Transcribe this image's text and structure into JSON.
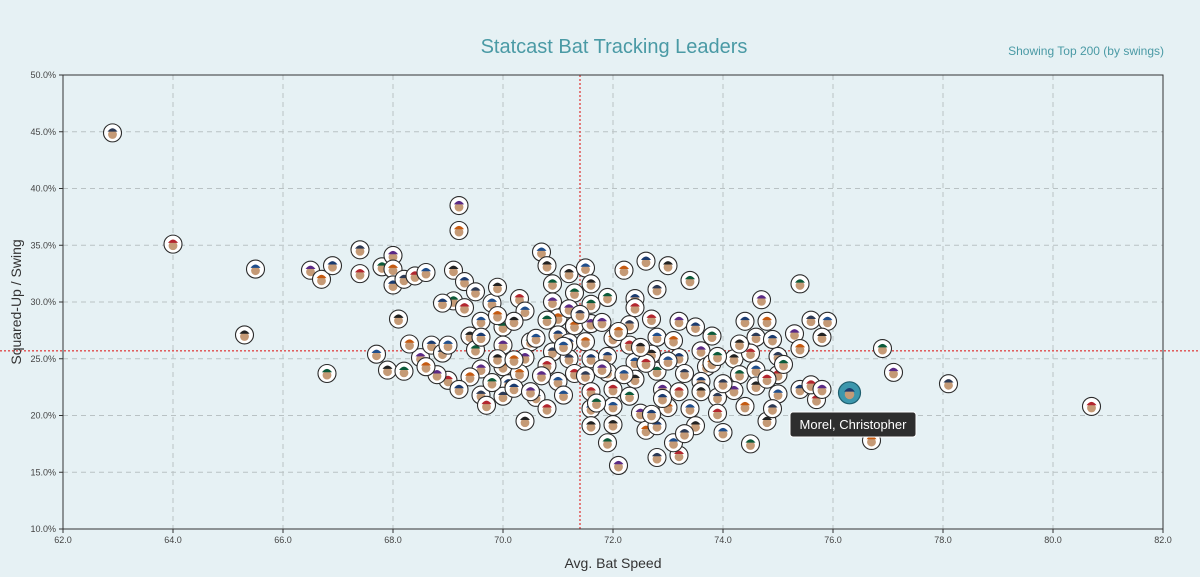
{
  "header": {
    "title": "Statcast Bat Tracking Leaders",
    "subtitle": "Showing Top 200 (by swings)"
  },
  "tooltip": {
    "text": "Morel, Christopher"
  },
  "colors": {
    "title": "#4a9aa5",
    "average_line": "#e04a4a",
    "highlight": "#3c97ad",
    "background": "#e6f1f4"
  },
  "chart_data": {
    "type": "scatter",
    "xlabel": "Avg. Bat Speed",
    "ylabel": "Squared-Up / Swing",
    "xlim": [
      62,
      82
    ],
    "ylim": [
      10,
      50
    ],
    "xticks": [
      "62.0",
      "64.0",
      "66.0",
      "68.0",
      "70.0",
      "72.0",
      "74.0",
      "76.0",
      "78.0",
      "80.0",
      "82.0"
    ],
    "yticks": [
      "10.0%",
      "15.0%",
      "20.0%",
      "25.0%",
      "30.0%",
      "35.0%",
      "40.0%",
      "45.0%",
      "50.0%"
    ],
    "grid": true,
    "reference_lines": {
      "x": 71.4,
      "y": 25.7
    },
    "highlighted_point": {
      "name": "Morel, Christopher",
      "x": 76.3,
      "y": 22.0
    },
    "points": [
      [
        62.9,
        44.9
      ],
      [
        64.0,
        35.1
      ],
      [
        65.5,
        32.9
      ],
      [
        65.3,
        27.1
      ],
      [
        66.8,
        23.7
      ],
      [
        66.5,
        32.8
      ],
      [
        66.7,
        32.0
      ],
      [
        66.9,
        33.2
      ],
      [
        67.4,
        34.6
      ],
      [
        67.4,
        32.5
      ],
      [
        67.7,
        25.4
      ],
      [
        67.9,
        24.0
      ],
      [
        67.8,
        33.1
      ],
      [
        68.0,
        34.1
      ],
      [
        68.0,
        32.9
      ],
      [
        68.0,
        31.5
      ],
      [
        68.2,
        32.0
      ],
      [
        68.4,
        32.3
      ],
      [
        68.6,
        32.6
      ],
      [
        68.1,
        28.5
      ],
      [
        68.2,
        23.9
      ],
      [
        68.5,
        25.1
      ],
      [
        68.3,
        26.3
      ],
      [
        68.7,
        26.2
      ],
      [
        68.9,
        25.5
      ],
      [
        69.0,
        23.1
      ],
      [
        69.0,
        26.2
      ],
      [
        69.1,
        32.8
      ],
      [
        69.1,
        30.1
      ],
      [
        69.2,
        38.5
      ],
      [
        69.2,
        36.3
      ],
      [
        69.3,
        31.8
      ],
      [
        69.5,
        30.9
      ],
      [
        69.3,
        29.5
      ],
      [
        69.6,
        28.3
      ],
      [
        69.4,
        27.0
      ],
      [
        69.5,
        25.8
      ],
      [
        69.6,
        24.1
      ],
      [
        69.4,
        23.4
      ],
      [
        69.2,
        22.3
      ],
      [
        69.6,
        21.8
      ],
      [
        69.7,
        20.9
      ],
      [
        69.8,
        29.9
      ],
      [
        69.9,
        31.3
      ],
      [
        70.0,
        27.8
      ],
      [
        70.0,
        26.2
      ],
      [
        70.0,
        24.3
      ],
      [
        70.1,
        22.8
      ],
      [
        70.0,
        21.7
      ],
      [
        70.3,
        30.3
      ],
      [
        70.4,
        29.2
      ],
      [
        70.2,
        28.3
      ],
      [
        70.5,
        26.5
      ],
      [
        70.4,
        25.1
      ],
      [
        70.3,
        23.7
      ],
      [
        70.2,
        22.4
      ],
      [
        70.6,
        21.6
      ],
      [
        70.8,
        20.6
      ],
      [
        70.7,
        34.4
      ],
      [
        70.8,
        33.2
      ],
      [
        70.9,
        31.6
      ],
      [
        70.9,
        30.0
      ],
      [
        71.0,
        28.6
      ],
      [
        71.0,
        27.1
      ],
      [
        70.9,
        25.6
      ],
      [
        70.8,
        24.4
      ],
      [
        71.0,
        23.0
      ],
      [
        71.2,
        32.5
      ],
      [
        71.3,
        30.8
      ],
      [
        71.2,
        29.4
      ],
      [
        71.3,
        27.9
      ],
      [
        71.2,
        26.4
      ],
      [
        71.2,
        25.0
      ],
      [
        71.3,
        23.7
      ],
      [
        71.5,
        33.0
      ],
      [
        71.6,
        31.6
      ],
      [
        71.6,
        29.8
      ],
      [
        71.6,
        28.1
      ],
      [
        71.5,
        26.5
      ],
      [
        71.6,
        25.0
      ],
      [
        71.5,
        23.5
      ],
      [
        71.6,
        22.1
      ],
      [
        71.6,
        20.6
      ],
      [
        71.6,
        19.1
      ],
      [
        71.9,
        30.4
      ],
      [
        71.8,
        28.2
      ],
      [
        72.0,
        26.8
      ],
      [
        71.9,
        25.2
      ],
      [
        71.9,
        23.8
      ],
      [
        72.0,
        22.3
      ],
      [
        72.0,
        20.8
      ],
      [
        72.0,
        19.2
      ],
      [
        71.9,
        17.6
      ],
      [
        72.1,
        15.6
      ],
      [
        72.2,
        32.8
      ],
      [
        72.4,
        30.3
      ],
      [
        72.3,
        28.0
      ],
      [
        72.3,
        26.2
      ],
      [
        72.4,
        24.7
      ],
      [
        72.4,
        23.2
      ],
      [
        72.3,
        21.7
      ],
      [
        72.5,
        20.2
      ],
      [
        72.6,
        18.7
      ],
      [
        72.6,
        33.6
      ],
      [
        72.8,
        31.1
      ],
      [
        72.7,
        28.5
      ],
      [
        72.8,
        26.9
      ],
      [
        72.7,
        25.4
      ],
      [
        72.8,
        23.9
      ],
      [
        72.9,
        22.3
      ],
      [
        73.0,
        20.7
      ],
      [
        72.8,
        19.1
      ],
      [
        72.8,
        16.3
      ],
      [
        73.2,
        16.5
      ],
      [
        73.1,
        17.6
      ],
      [
        73.0,
        33.2
      ],
      [
        73.4,
        31.9
      ],
      [
        73.2,
        28.3
      ],
      [
        73.1,
        26.6
      ],
      [
        73.2,
        25.1
      ],
      [
        73.3,
        23.7
      ],
      [
        73.2,
        22.1
      ],
      [
        73.4,
        20.6
      ],
      [
        73.5,
        19.1
      ],
      [
        73.8,
        27.0
      ],
      [
        73.6,
        25.7
      ],
      [
        73.7,
        24.3
      ],
      [
        73.6,
        23.0
      ],
      [
        73.9,
        21.6
      ],
      [
        73.9,
        20.2
      ],
      [
        74.0,
        18.5
      ],
      [
        74.2,
        25.0
      ],
      [
        74.3,
        23.6
      ],
      [
        74.2,
        22.2
      ],
      [
        74.4,
        20.8
      ],
      [
        74.4,
        28.3
      ],
      [
        74.6,
        26.9
      ],
      [
        74.5,
        25.5
      ],
      [
        74.6,
        24.0
      ],
      [
        74.6,
        22.6
      ],
      [
        74.5,
        17.5
      ],
      [
        74.7,
        30.2
      ],
      [
        74.8,
        28.3
      ],
      [
        74.9,
        26.7
      ],
      [
        75.0,
        25.2
      ],
      [
        75.0,
        23.6
      ],
      [
        75.0,
        21.9
      ],
      [
        74.8,
        19.5
      ],
      [
        75.4,
        31.6
      ],
      [
        75.3,
        27.2
      ],
      [
        75.4,
        25.9
      ],
      [
        75.4,
        22.3
      ],
      [
        75.6,
        28.4
      ],
      [
        75.7,
        21.4
      ],
      [
        75.9,
        28.3
      ],
      [
        75.8,
        26.9
      ],
      [
        76.9,
        25.9
      ],
      [
        77.1,
        23.8
      ],
      [
        76.7,
        17.8
      ],
      [
        76.7,
        19.4
      ],
      [
        78.1,
        22.8
      ],
      [
        80.7,
        20.8
      ],
      [
        70.6,
        26.8
      ],
      [
        69.9,
        25.0
      ],
      [
        70.8,
        28.4
      ],
      [
        71.8,
        24.1
      ],
      [
        72.1,
        27.4
      ],
      [
        73.5,
        27.8
      ],
      [
        74.0,
        22.8
      ],
      [
        72.6,
        24.6
      ],
      [
        71.1,
        21.8
      ],
      [
        70.4,
        19.5
      ],
      [
        69.8,
        22.9
      ],
      [
        68.8,
        23.6
      ],
      [
        73.8,
        24.6
      ],
      [
        72.9,
        21.5
      ],
      [
        74.9,
        20.6
      ],
      [
        75.6,
        22.7
      ],
      [
        72.2,
        23.6
      ],
      [
        73.6,
        22.1
      ],
      [
        71.7,
        21.1
      ],
      [
        70.7,
        23.5
      ],
      [
        69.9,
        28.8
      ],
      [
        68.9,
        29.9
      ],
      [
        71.4,
        28.9
      ],
      [
        72.4,
        29.5
      ],
      [
        73.0,
        24.8
      ],
      [
        74.3,
        26.3
      ],
      [
        75.1,
        24.5
      ],
      [
        75.8,
        22.3
      ],
      [
        70.2,
        24.9
      ],
      [
        72.7,
        20.1
      ],
      [
        73.3,
        18.4
      ],
      [
        74.8,
        23.2
      ],
      [
        71.1,
        26.1
      ],
      [
        72.5,
        26.0
      ],
      [
        73.9,
        25.2
      ],
      [
        70.5,
        22.1
      ],
      [
        68.6,
        24.3
      ],
      [
        69.6,
        26.9
      ]
    ]
  }
}
